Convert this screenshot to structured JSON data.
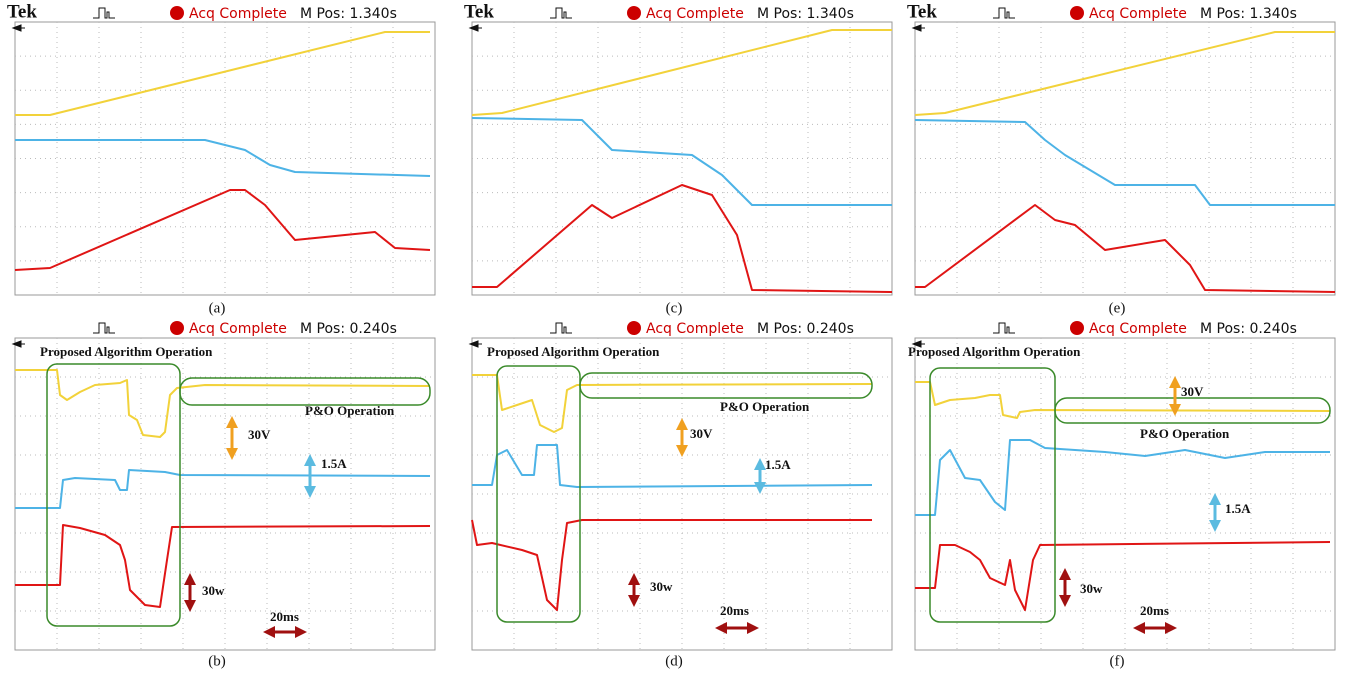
{
  "top_row": [
    {
      "brand": "Tek",
      "status": "Acq Complete",
      "position": "M Pos: 1.340s",
      "caption": "(a)"
    },
    {
      "brand": "Tek",
      "status": "Acq Complete",
      "position": "M Pos: 1.340s",
      "caption": "(c)"
    },
    {
      "brand": "Tek",
      "status": "Acq Complete",
      "position": "M Pos: 1.340s",
      "caption": "(e)"
    }
  ],
  "bottom_row": [
    {
      "status": "Acq Complete",
      "position": "M Pos: 0.240s",
      "algorithm_label": "Proposed Algorithm Operation",
      "po_label": "P&O Operation",
      "voltage_scale": "30V",
      "current_scale": "1.5A",
      "power_scale": "30w",
      "time_scale": "20ms",
      "caption": "(b)"
    },
    {
      "status": "Acq Complete",
      "position": "M Pos: 0.240s",
      "algorithm_label": "Proposed Algorithm Operation",
      "po_label": "P&O Operation",
      "voltage_scale": "30V",
      "current_scale": "1.5A",
      "power_scale": "30w",
      "time_scale": "20ms",
      "caption": "(d)"
    },
    {
      "status": "Acq Complete",
      "position": "M Pos: 0.240s",
      "algorithm_label": "Proposed Algorithm Operation",
      "po_label": "P&O Operation",
      "voltage_scale": "30V",
      "current_scale": "1.5A",
      "power_scale": "30w",
      "time_scale": "20ms",
      "caption": "(f)"
    }
  ]
}
